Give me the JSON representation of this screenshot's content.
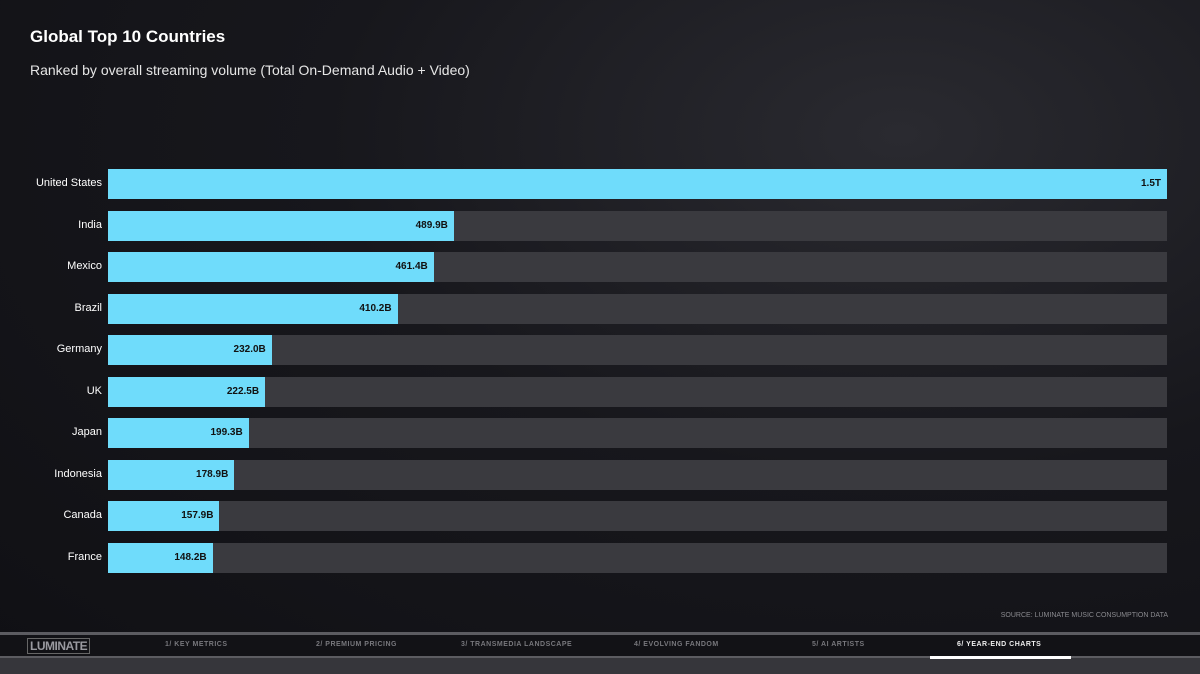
{
  "chart_data": {
    "type": "bar",
    "orientation": "horizontal",
    "title": "Global Top 10 Countries",
    "subtitle": "Ranked by overall streaming volume (Total On-Demand Audio + Video)",
    "categories": [
      "United States",
      "India",
      "Mexico",
      "Brazil",
      "Germany",
      "UK",
      "Japan",
      "Indonesia",
      "Canada",
      "France"
    ],
    "values": [
      1500,
      489.9,
      461.4,
      410.2,
      232.0,
      222.5,
      199.3,
      178.9,
      157.9,
      148.2
    ],
    "value_labels": [
      "1.5T",
      "489.9B",
      "461.4B",
      "410.2B",
      "232.0B",
      "222.5B",
      "199.3B",
      "178.9B",
      "157.9B",
      "148.2B"
    ],
    "unit": "billions of streams",
    "xlim": [
      0,
      1500
    ],
    "bar_color": "#6fdcfb",
    "track_color": "#3a3a3f"
  },
  "source": "SOURCE: LUMINATE MUSIC CONSUMPTION DATA",
  "nav": {
    "logo": "LUMINATE",
    "items": [
      "1/ KEY METRICS",
      "2/ PREMIUM PRICING",
      "3/ TRANSMEDIA LANDSCAPE",
      "4/ EVOLVING FANDOM",
      "5/ AI ARTISTS",
      "6/ YEAR-END CHARTS"
    ],
    "active_index": 5
  }
}
